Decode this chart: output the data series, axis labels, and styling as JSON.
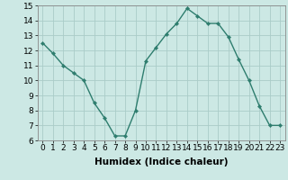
{
  "x": [
    0,
    1,
    2,
    3,
    4,
    5,
    6,
    7,
    8,
    9,
    10,
    11,
    12,
    13,
    14,
    15,
    16,
    17,
    18,
    19,
    20,
    21,
    22,
    23
  ],
  "y": [
    12.5,
    11.8,
    11.0,
    10.5,
    10.0,
    8.5,
    7.5,
    6.3,
    6.3,
    8.0,
    11.3,
    12.2,
    13.1,
    13.8,
    14.8,
    14.3,
    13.8,
    13.8,
    12.9,
    11.4,
    10.0,
    8.3,
    7.0,
    7.0
  ],
  "line_color": "#2e7d6e",
  "marker": "D",
  "marker_size": 2.2,
  "line_width": 1.0,
  "bg_color": "#cce8e4",
  "grid_color": "#aaccc8",
  "xlabel": "Humidex (Indice chaleur)",
  "ylim": [
    6,
    15
  ],
  "xlim_min": -0.5,
  "xlim_max": 23.5,
  "yticks": [
    6,
    7,
    8,
    9,
    10,
    11,
    12,
    13,
    14,
    15
  ],
  "xticks": [
    0,
    1,
    2,
    3,
    4,
    5,
    6,
    7,
    8,
    9,
    10,
    11,
    12,
    13,
    14,
    15,
    16,
    17,
    18,
    19,
    20,
    21,
    22,
    23
  ],
  "xlabel_fontsize": 7.5,
  "tick_fontsize": 6.5
}
